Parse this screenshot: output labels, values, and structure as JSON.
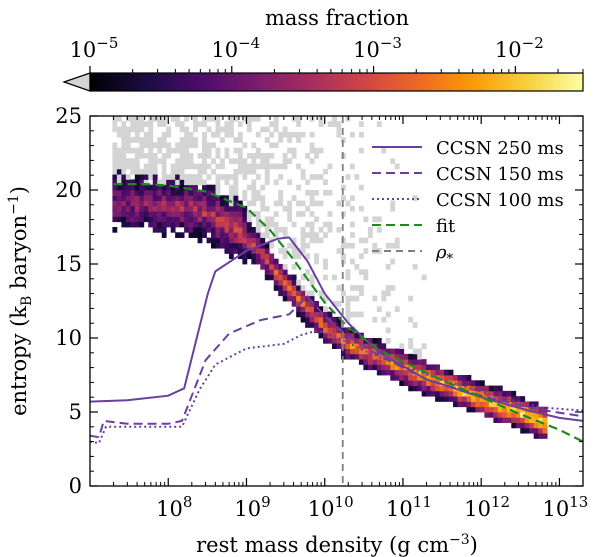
{
  "chart_data": {
    "type": "heatmap",
    "title": "",
    "xlabel": "rest mass density (g cm",
    "xlabel_sup": "−3",
    "xlabel_tail": ")",
    "ylabel": "entropy (k",
    "ylabel_sub": "B",
    "ylabel_mid": " baryon",
    "ylabel_sup": "−1",
    "ylabel_tail": ")",
    "xscale": "log",
    "xlim": [
      10000000.0,
      20000000000000.0
    ],
    "ylim": [
      0,
      25
    ],
    "x_ticks": [
      {
        "value": 100000000.0,
        "base": "10",
        "exp": "8"
      },
      {
        "value": 1000000000.0,
        "base": "10",
        "exp": "9"
      },
      {
        "value": 10000000000.0,
        "base": "10",
        "exp": "10"
      },
      {
        "value": 100000000000.0,
        "base": "10",
        "exp": "11"
      },
      {
        "value": 1000000000000.0,
        "base": "10",
        "exp": "12"
      },
      {
        "value": 10000000000000.0,
        "base": "10",
        "exp": "13"
      }
    ],
    "y_ticks": [
      {
        "value": 0,
        "label": "0"
      },
      {
        "value": 5,
        "label": "5"
      },
      {
        "value": 10,
        "label": "10"
      },
      {
        "value": 15,
        "label": "15"
      },
      {
        "value": 20,
        "label": "20"
      },
      {
        "value": 25,
        "label": "25"
      }
    ],
    "colorbar": {
      "label": "mass fraction",
      "scale": "log",
      "range": [
        1e-05,
        0.03
      ],
      "extend": "min",
      "ticks": [
        {
          "value": 1e-05,
          "base": "10",
          "exp": "−5"
        },
        {
          "value": 0.0001,
          "base": "10",
          "exp": "−4"
        },
        {
          "value": 0.001,
          "base": "10",
          "exp": "−3"
        },
        {
          "value": 0.01,
          "base": "10",
          "exp": "−2"
        }
      ],
      "colormap": [
        "#000004",
        "#1b0c41",
        "#4a0c6b",
        "#781c6d",
        "#a52c60",
        "#cf4446",
        "#ed6925",
        "#fb9b06",
        "#f7d13d",
        "#fcffa4"
      ],
      "under_color": "#d4d4d4"
    },
    "series": [
      {
        "name": "CCSN 250 ms",
        "style": "solid",
        "color": "#6a3fa0",
        "points": [
          [
            10000000.0,
            5.7
          ],
          [
            30000000.0,
            5.8
          ],
          [
            100000000.0,
            6.1
          ],
          [
            160000000.0,
            6.6
          ],
          [
            320000000.0,
            13.0
          ],
          [
            400000000.0,
            14.5
          ],
          [
            1000000000.0,
            15.9
          ],
          [
            2500000000.0,
            16.7
          ],
          [
            3500000000.0,
            16.8
          ],
          [
            6000000000.0,
            15.2
          ],
          [
            10000000000.0,
            13.0
          ],
          [
            20000000000.0,
            11.0
          ],
          [
            50000000000.0,
            9.0
          ],
          [
            200000000000.0,
            7.2
          ],
          [
            1000000000000.0,
            6.0
          ],
          [
            4000000000000.0,
            5.1
          ],
          [
            10000000000000.0,
            4.6
          ],
          [
            20000000000000.0,
            4.4
          ]
        ]
      },
      {
        "name": "CCSN 150 ms",
        "style": "dashed",
        "color": "#6a3fa0",
        "points": [
          [
            10000000.0,
            3.4
          ],
          [
            13000000.0,
            3.3
          ],
          [
            15000000.0,
            4.4
          ],
          [
            30000000.0,
            4.2
          ],
          [
            100000000.0,
            4.2
          ],
          [
            150000000.0,
            4.4
          ],
          [
            300000000.0,
            8.5
          ],
          [
            600000000.0,
            10.3
          ],
          [
            1500000000.0,
            11.2
          ],
          [
            3500000000.0,
            11.6
          ],
          [
            6000000000.0,
            12.8
          ],
          [
            10000000000.0,
            11.5
          ],
          [
            20000000000.0,
            10.1
          ],
          [
            50000000000.0,
            8.8
          ],
          [
            200000000000.0,
            7.2
          ],
          [
            1000000000000.0,
            6.1
          ],
          [
            5000000000000.0,
            5.2
          ],
          [
            20000000000000.0,
            4.7
          ]
        ]
      },
      {
        "name": "CCSN 100 ms",
        "style": "dotted",
        "color": "#6a3fa0",
        "points": [
          [
            10000000.0,
            3.0
          ],
          [
            13000000.0,
            2.9
          ],
          [
            16000000.0,
            4.0
          ],
          [
            30000000.0,
            4.0
          ],
          [
            150000000.0,
            4.0
          ],
          [
            250000000.0,
            6.5
          ],
          [
            400000000.0,
            8.2
          ],
          [
            1000000000.0,
            9.3
          ],
          [
            3000000000.0,
            9.6
          ],
          [
            5000000000.0,
            10.2
          ],
          [
            8000000000.0,
            10.5
          ],
          [
            15000000000.0,
            10.0
          ],
          [
            30000000000.0,
            9.2
          ],
          [
            80000000000.0,
            8.3
          ],
          [
            300000000000.0,
            7.2
          ],
          [
            1500000000000.0,
            6.1
          ],
          [
            6000000000000.0,
            5.3
          ],
          [
            20000000000000.0,
            5.1
          ]
        ]
      },
      {
        "name": "fit",
        "style": "dashed",
        "color": "#1e8a1e",
        "points": [
          [
            20000000.0,
            20.4
          ],
          [
            50000000.0,
            20.4
          ],
          [
            100000000.0,
            20.3
          ],
          [
            300000000.0,
            19.9
          ],
          [
            1000000000.0,
            18.8
          ],
          [
            2000000000.0,
            17.3
          ],
          [
            4000000000.0,
            15.3
          ],
          [
            7000000000.0,
            13.5
          ],
          [
            10000000000.0,
            12.4
          ],
          [
            20000000000.0,
            10.7
          ],
          [
            50000000000.0,
            9.2
          ],
          [
            100000000000.0,
            8.4
          ],
          [
            300000000000.0,
            7.2
          ],
          [
            1000000000000.0,
            6.0
          ],
          [
            3000000000000.0,
            4.9
          ],
          [
            10000000000000.0,
            3.8
          ],
          [
            20000000000000.0,
            3.0
          ]
        ]
      },
      {
        "name": "ρ",
        "name_sub": "*",
        "style": "dashed",
        "color": "#808080",
        "vertical_x": 17000000000.0
      }
    ],
    "histogram": {
      "ridge": [
        [
          20000000.0,
          19.2
        ],
        [
          100000000.0,
          19.0
        ],
        [
          300000000.0,
          18.5
        ],
        [
          800000000.0,
          17.3
        ],
        [
          1500000000.0,
          15.8
        ],
        [
          3000000000.0,
          13.8
        ],
        [
          6000000000.0,
          12.0
        ],
        [
          10000000000.0,
          10.8
        ],
        [
          20000000000.0,
          9.6
        ],
        [
          50000000000.0,
          8.7
        ],
        [
          100000000000.0,
          8.0
        ],
        [
          300000000000.0,
          7.0
        ],
        [
          1000000000000.0,
          5.9
        ],
        [
          3000000000000.0,
          5.0
        ],
        [
          7000000000000.0,
          4.2
        ]
      ],
      "grey_region": {
        "x_range": [
          20000000.0,
          200000000000.0
        ],
        "y_range": [
          8.0,
          25.0
        ]
      },
      "peak_mass_fraction": 0.03
    },
    "legend": {
      "placement": "top-right"
    }
  }
}
